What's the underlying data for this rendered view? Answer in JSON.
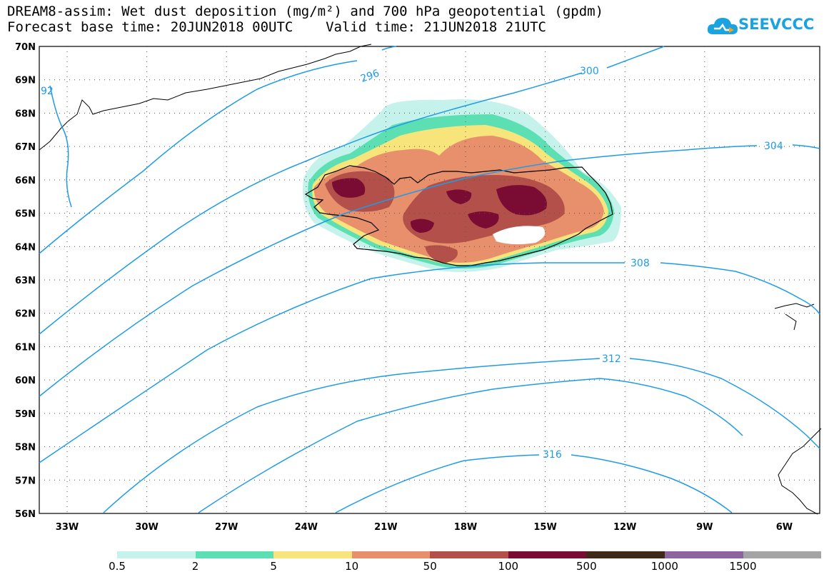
{
  "header": {
    "title_line1": "DREAM8-assim: Wet dust deposition (mg/m²) and 700 hPa geopotential (gpdm)",
    "title_line2": "Forecast base time: 20JUN2018 00UTC    Valid time: 21JUN2018 21UTC"
  },
  "logo": {
    "text": "SEEVCCC",
    "icon": "cloud-icon",
    "color": "#1aa3e0"
  },
  "map": {
    "lat_labels": [
      "70N",
      "69N",
      "68N",
      "67N",
      "66N",
      "65N",
      "64N",
      "63N",
      "62N",
      "61N",
      "60N",
      "59N",
      "58N",
      "57N",
      "56N"
    ],
    "lon_labels": [
      "33W",
      "30W",
      "27W",
      "24W",
      "21W",
      "18W",
      "15W",
      "12W",
      "9W",
      "6W"
    ],
    "contour_labels": [
      "296",
      "300",
      "304",
      "308",
      "312",
      "316",
      "92"
    ],
    "contour_color": "#1e9be8"
  },
  "colorbar": {
    "colors": [
      "#c5f2ea",
      "#5ddfb4",
      "#f7e57c",
      "#e8906c",
      "#b3504a",
      "#7a0c33",
      "#3f2a19",
      "#8c64a0",
      "#a4a4a4"
    ],
    "labels": [
      "0.5",
      "2",
      "5",
      "10",
      "50",
      "100",
      "500",
      "1000",
      "1500"
    ]
  }
}
